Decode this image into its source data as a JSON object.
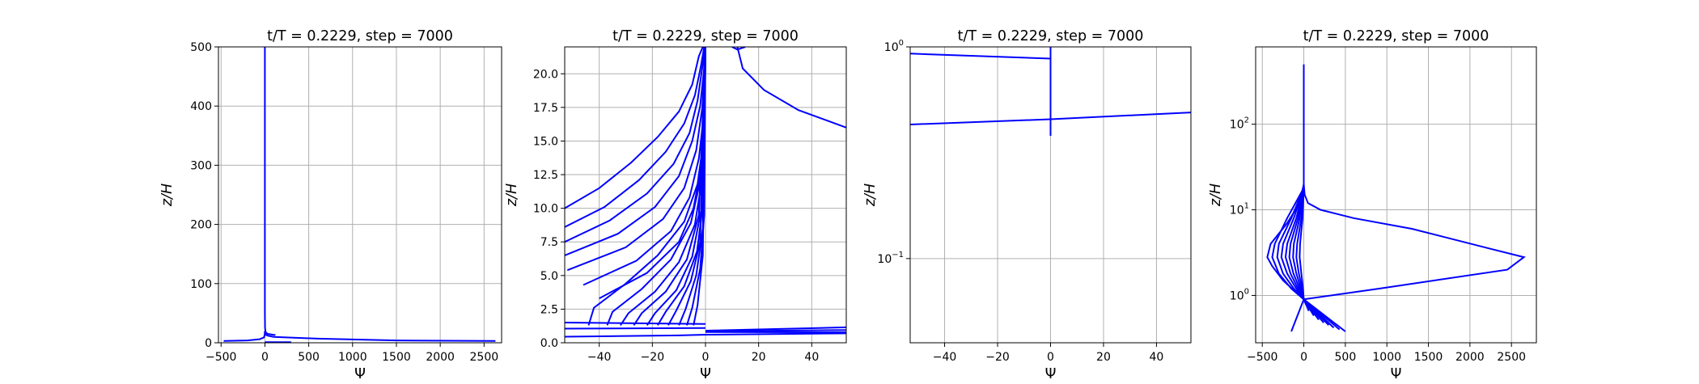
{
  "chart_data": [
    {
      "type": "line",
      "title": "t/T = 0.2229, step = 7000",
      "xlabel": "Ψ",
      "ylabel": "z/H",
      "xlim": [
        -530,
        2700
      ],
      "ylim": [
        0,
        500
      ],
      "yscale": "linear",
      "grid": true,
      "xticks": [
        -500,
        0,
        500,
        1000,
        1500,
        2000,
        2500
      ],
      "yticks": [
        0,
        100,
        200,
        300,
        400,
        500
      ],
      "xtick_labels": [
        "−500",
        "0",
        "500",
        "1000",
        "1500",
        "2000",
        "2500"
      ],
      "ytick_labels": [
        "0",
        "100",
        "200",
        "300",
        "400",
        "500"
      ],
      "series": [
        {
          "x": [
            0,
            0,
            0,
            2,
            8,
            30,
            120
          ],
          "y": [
            500,
            200,
            50,
            25,
            18,
            15,
            13
          ]
        },
        {
          "x": [
            2630,
            1500,
            600,
            100,
            30,
            5,
            0
          ],
          "y": [
            3,
            4,
            7,
            10,
            12,
            14,
            18
          ]
        },
        {
          "x": [
            -470,
            -200,
            -60,
            -10,
            -2,
            0
          ],
          "y": [
            3,
            4,
            6,
            9,
            14,
            20
          ]
        },
        {
          "x": [
            0,
            200,
            300
          ],
          "y": [
            1,
            1,
            1
          ]
        }
      ]
    },
    {
      "type": "line",
      "title": "t/T = 0.2229, step = 7000",
      "xlabel": "Ψ",
      "ylabel": "z/H",
      "xlim": [
        -53,
        53
      ],
      "ylim": [
        0,
        22
      ],
      "yscale": "linear",
      "grid": true,
      "xticks": [
        -40,
        -20,
        0,
        20,
        40
      ],
      "yticks": [
        0,
        2.5,
        5,
        7.5,
        10,
        12.5,
        15,
        17.5,
        20
      ],
      "xtick_labels": [
        "−40",
        "−20",
        "0",
        "20",
        "40"
      ],
      "ytick_labels": [
        "0.0",
        "2.5",
        "5.0",
        "7.5",
        "10.0",
        "12.5",
        "15.0",
        "17.5",
        "20.0"
      ],
      "series": [
        {
          "x": [
            -53,
            -40,
            -28,
            -18,
            -10,
            -5,
            -2.5,
            -1
          ],
          "y": [
            10,
            11.5,
            13.4,
            15.3,
            17.2,
            19.2,
            21.3,
            22
          ]
        },
        {
          "x": [
            -53,
            -38,
            -25,
            -15,
            -8,
            -4,
            -1.8,
            -0.5
          ],
          "y": [
            8.6,
            10.1,
            12.1,
            14.2,
            16.3,
            18.4,
            20.5,
            22
          ]
        },
        {
          "x": [
            -53,
            -36,
            -22,
            -12,
            -6,
            -3,
            -1.2,
            0
          ],
          "y": [
            7.5,
            9.1,
            11.1,
            13.3,
            15.6,
            18,
            20.5,
            22
          ]
        },
        {
          "x": [
            -53,
            -33,
            -19,
            -10,
            -5,
            -2,
            -0.6,
            0
          ],
          "y": [
            6.5,
            8.1,
            10.1,
            12.4,
            15,
            17.6,
            20.2,
            22
          ]
        },
        {
          "x": [
            -52,
            -30,
            -16,
            -8,
            -3.5,
            -1.2,
            0
          ],
          "y": [
            5.4,
            7.1,
            9.2,
            11.5,
            14.3,
            17.5,
            22
          ]
        },
        {
          "x": [
            -46,
            -26,
            -13,
            -6,
            -2.5,
            -0.6,
            0
          ],
          "y": [
            4.3,
            6.1,
            8.3,
            10.8,
            13.7,
            17,
            22
          ]
        },
        {
          "x": [
            -40,
            -22,
            -10,
            -4.5,
            -1.5,
            0
          ],
          "y": [
            3.3,
            5.2,
            7.5,
            10,
            13.2,
            22
          ]
        },
        {
          "x": [
            -44,
            -42,
            -30,
            -18,
            -8,
            -3,
            -0.8,
            0
          ],
          "y": [
            1.3,
            2.6,
            4.4,
            6.5,
            9,
            11.8,
            15,
            22
          ]
        },
        {
          "x": [
            -37,
            -35,
            -24,
            -13,
            -5.5,
            -1.8,
            0
          ],
          "y": [
            1.3,
            2.3,
            4,
            6.2,
            8.9,
            12.2,
            22
          ]
        },
        {
          "x": [
            -32,
            -29,
            -19,
            -10,
            -4,
            -1,
            0
          ],
          "y": [
            1.3,
            2.2,
            3.8,
            6,
            8.8,
            12.5,
            22
          ]
        },
        {
          "x": [
            -27,
            -24,
            -15,
            -7,
            -2.5,
            0
          ],
          "y": [
            1.3,
            2.2,
            3.8,
            6.2,
            9.5,
            22
          ]
        },
        {
          "x": [
            -22,
            -19,
            -11,
            -5,
            -1.5,
            0
          ],
          "y": [
            1.3,
            2.2,
            3.9,
            6.4,
            10,
            22
          ]
        },
        {
          "x": [
            -18,
            -15,
            -8,
            -3.2,
            -0.8,
            0
          ],
          "y": [
            1.3,
            2.3,
            4.2,
            6.8,
            10.5,
            22
          ]
        },
        {
          "x": [
            -14,
            -11,
            -5.5,
            -2,
            0
          ],
          "y": [
            1.3,
            2.4,
            4.6,
            7.5,
            22
          ]
        },
        {
          "x": [
            -10,
            -7.5,
            -3.5,
            -1,
            0
          ],
          "y": [
            1.3,
            2.5,
            5,
            8.5,
            22
          ]
        },
        {
          "x": [
            -7,
            -5,
            -2,
            -0.5,
            0
          ],
          "y": [
            1.3,
            2.6,
            5.5,
            9.5,
            22
          ]
        },
        {
          "x": [
            -4.5,
            -3,
            -1,
            0
          ],
          "y": [
            1.3,
            2.8,
            6.5,
            22
          ]
        },
        {
          "x": [
            -53,
            -10,
            0,
            53
          ],
          "y": [
            0.45,
            0.55,
            0.6,
            0.7
          ]
        },
        {
          "x": [
            0,
            53
          ],
          "y": [
            0.8,
            0.78
          ]
        },
        {
          "x": [
            0,
            53
          ],
          "y": [
            0.85,
            0.95
          ]
        },
        {
          "x": [
            0,
            53
          ],
          "y": [
            0.9,
            1.15
          ]
        },
        {
          "x": [
            -53,
            0
          ],
          "y": [
            1.05,
            1.1
          ]
        },
        {
          "x": [
            -53,
            0
          ],
          "y": [
            1.5,
            1.4
          ]
        },
        {
          "x": [
            12,
            14,
            22,
            35,
            53
          ],
          "y": [
            22,
            20.4,
            18.8,
            17.3,
            16
          ]
        },
        {
          "x": [
            10,
            12,
            15
          ],
          "y": [
            22,
            21.8,
            22
          ]
        }
      ]
    },
    {
      "type": "line",
      "title": "t/T = 0.2229, step = 7000",
      "xlabel": "Ψ",
      "ylabel": "z/H",
      "xlim": [
        -53,
        53
      ],
      "ylim": [
        0.04,
        1.0
      ],
      "yscale": "log",
      "grid": true,
      "xticks": [
        -40,
        -20,
        0,
        20,
        40
      ],
      "xtick_labels": [
        "−40",
        "−20",
        "0",
        "20",
        "40"
      ],
      "yticks": [
        0.1,
        1.0
      ],
      "ytick_labels": [
        {
          "base": "10",
          "exp": "−1"
        },
        {
          "base": "10",
          "exp": "0"
        }
      ],
      "series": [
        {
          "x": [
            -53,
            0
          ],
          "y": [
            0.93,
            0.88
          ]
        },
        {
          "x": [
            -53,
            0,
            53
          ],
          "y": [
            0.43,
            0.455,
            0.49
          ]
        },
        {
          "x": [
            0,
            0
          ],
          "y": [
            0.38,
            1.0
          ]
        }
      ]
    },
    {
      "type": "line",
      "title": "t/T = 0.2229, step = 7000",
      "xlabel": "Ψ",
      "ylabel": "z/H",
      "xlim": [
        -580,
        2800
      ],
      "ylim": [
        0.28,
        800
      ],
      "yscale": "log",
      "grid": true,
      "xticks": [
        -500,
        0,
        500,
        1000,
        1500,
        2000,
        2500
      ],
      "xtick_labels": [
        "−500",
        "0",
        "500",
        "1000",
        "1500",
        "2000",
        "2500"
      ],
      "yticks": [
        1,
        10,
        100
      ],
      "ytick_labels": [
        {
          "base": "10",
          "exp": "0"
        },
        {
          "base": "10",
          "exp": "1"
        },
        {
          "base": "10",
          "exp": "2"
        }
      ],
      "series": [
        {
          "x": [
            0,
            0,
            0,
            10,
            50,
            200,
            600,
            1300,
            2250,
            2650,
            2450,
            900,
            0
          ],
          "y": [
            500,
            100,
            20,
            15,
            12,
            10,
            8,
            6,
            3.5,
            2.8,
            2.0,
            1.2,
            0.9
          ]
        },
        {
          "x": [
            0,
            -50,
            -200,
            -400,
            -440,
            -380,
            -250,
            -100,
            0
          ],
          "y": [
            20,
            12,
            7,
            4,
            2.8,
            2.2,
            1.5,
            1.1,
            0.9
          ]
        },
        {
          "x": [
            0,
            -200,
            -350,
            -380,
            -300,
            -150,
            0
          ],
          "y": [
            18,
            8,
            4,
            2.8,
            1.8,
            1.2,
            0.9
          ]
        },
        {
          "x": [
            0,
            -150,
            -300,
            -320,
            -250,
            -120,
            0
          ],
          "y": [
            18,
            8,
            4,
            2.8,
            1.8,
            1.2,
            0.9
          ]
        },
        {
          "x": [
            0,
            -120,
            -250,
            -270,
            -200,
            -90,
            0
          ],
          "y": [
            18,
            8,
            4,
            2.8,
            1.8,
            1.2,
            0.9
          ]
        },
        {
          "x": [
            0,
            -90,
            -200,
            -220,
            -160,
            -70,
            0
          ],
          "y": [
            18,
            8,
            4,
            2.8,
            1.8,
            1.2,
            0.9
          ]
        },
        {
          "x": [
            0,
            -70,
            -160,
            -175,
            -125,
            -50,
            0
          ],
          "y": [
            18,
            8,
            4,
            2.8,
            1.8,
            1.2,
            0.9
          ]
        },
        {
          "x": [
            0,
            -50,
            -120,
            -130,
            -90,
            -35,
            0
          ],
          "y": [
            18,
            8,
            4,
            2.8,
            1.8,
            1.2,
            0.9
          ]
        },
        {
          "x": [
            0,
            -30,
            -80,
            -90,
            -60,
            -20,
            0
          ],
          "y": [
            18,
            8,
            4,
            2.8,
            1.8,
            1.2,
            0.9
          ]
        },
        {
          "x": [
            0,
            -15,
            -45,
            -50,
            -30,
            -10,
            0
          ],
          "y": [
            18,
            8,
            4,
            2.8,
            1.8,
            1.2,
            0.9
          ]
        },
        {
          "x": [
            -150,
            0
          ],
          "y": [
            0.38,
            0.9
          ]
        },
        {
          "x": [
            0,
            500
          ],
          "y": [
            0.9,
            0.38
          ]
        },
        {
          "x": [
            0,
            430
          ],
          "y": [
            0.9,
            0.4
          ]
        },
        {
          "x": [
            0,
            360
          ],
          "y": [
            0.9,
            0.42
          ]
        },
        {
          "x": [
            0,
            300
          ],
          "y": [
            0.9,
            0.45
          ]
        },
        {
          "x": [
            0,
            240
          ],
          "y": [
            0.9,
            0.48
          ]
        },
        {
          "x": [
            0,
            180
          ],
          "y": [
            0.9,
            0.52
          ]
        },
        {
          "x": [
            0,
            120
          ],
          "y": [
            0.9,
            0.58
          ]
        },
        {
          "x": [
            0,
            60
          ],
          "y": [
            0.9,
            0.66
          ]
        }
      ]
    }
  ]
}
